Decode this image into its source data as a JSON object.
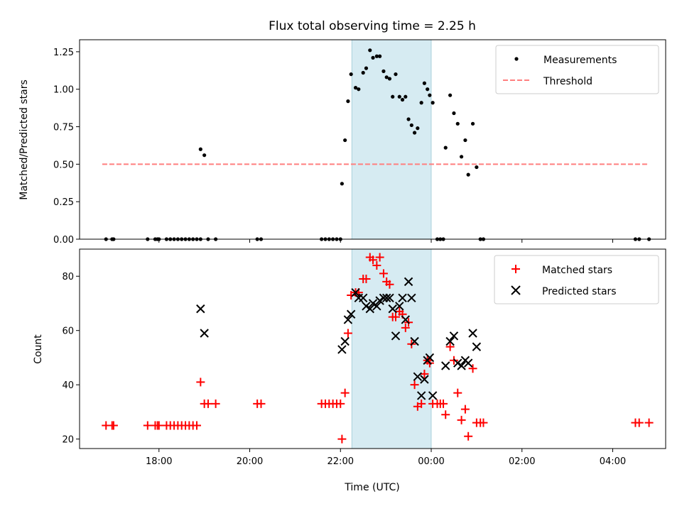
{
  "chart_data": [
    {
      "type": "scatter",
      "title": "Flux total observing time = 2.25 h",
      "xlabel": "",
      "ylabel": "Matched/Predicted stars",
      "xlim": [
        "16:15",
        "05:10"
      ],
      "ylim": [
        0,
        1.33
      ],
      "yticks": [
        0.0,
        0.25,
        0.5,
        0.75,
        1.0,
        1.25
      ],
      "ytick_labels": [
        "0.00",
        "0.25",
        "0.50",
        "0.75",
        "1.00",
        "1.25"
      ],
      "highlight_span": [
        "22:15",
        "00:00"
      ],
      "legend": {
        "position": "top-right",
        "entries": [
          "Measurements",
          "Threshold"
        ]
      },
      "series": [
        {
          "name": "Measurements",
          "marker": "dot",
          "color": "#000000",
          "points": [
            [
              "16:50",
              0
            ],
            [
              "16:58",
              0
            ],
            [
              "17:00",
              0
            ],
            [
              "17:45",
              0
            ],
            [
              "17:55",
              0
            ],
            [
              "17:58",
              0
            ],
            [
              "18:00",
              0
            ],
            [
              "18:10",
              0
            ],
            [
              "18:15",
              0
            ],
            [
              "18:20",
              0
            ],
            [
              "18:25",
              0
            ],
            [
              "18:30",
              0
            ],
            [
              "18:35",
              0
            ],
            [
              "18:40",
              0
            ],
            [
              "18:45",
              0
            ],
            [
              "18:50",
              0
            ],
            [
              "18:55",
              0
            ],
            [
              "19:05",
              0
            ],
            [
              "19:15",
              0
            ],
            [
              "20:10",
              0
            ],
            [
              "20:15",
              0
            ],
            [
              "21:35",
              0
            ],
            [
              "21:40",
              0
            ],
            [
              "21:45",
              0
            ],
            [
              "21:50",
              0
            ],
            [
              "21:55",
              0
            ],
            [
              "22:00",
              0
            ],
            [
              "18:55",
              0.6
            ],
            [
              "19:00",
              0.56
            ],
            [
              "22:02",
              0.37
            ],
            [
              "22:06",
              0.66
            ],
            [
              "22:10",
              0.92
            ],
            [
              "22:14",
              1.1
            ],
            [
              "22:20",
              1.01
            ],
            [
              "22:24",
              1.0
            ],
            [
              "22:30",
              1.11
            ],
            [
              "22:34",
              1.14
            ],
            [
              "22:39",
              1.26
            ],
            [
              "22:43",
              1.21
            ],
            [
              "22:48",
              1.22
            ],
            [
              "22:52",
              1.22
            ],
            [
              "22:57",
              1.12
            ],
            [
              "23:01",
              1.08
            ],
            [
              "23:05",
              1.07
            ],
            [
              "23:09",
              0.95
            ],
            [
              "23:13",
              1.1
            ],
            [
              "23:18",
              0.95
            ],
            [
              "23:22",
              0.93
            ],
            [
              "23:26",
              0.95
            ],
            [
              "23:30",
              0.8
            ],
            [
              "23:34",
              0.76
            ],
            [
              "23:38",
              0.71
            ],
            [
              "23:42",
              0.74
            ],
            [
              "23:47",
              0.91
            ],
            [
              "23:51",
              1.04
            ],
            [
              "23:55",
              1.0
            ],
            [
              "23:58",
              0.96
            ],
            [
              "00:02",
              0.91
            ],
            [
              "00:08",
              0
            ],
            [
              "00:12",
              0
            ],
            [
              "00:16",
              0
            ],
            [
              "00:19",
              0.61
            ],
            [
              "00:25",
              0.96
            ],
            [
              "00:30",
              0.84
            ],
            [
              "00:35",
              0.77
            ],
            [
              "00:40",
              0.55
            ],
            [
              "00:45",
              0.66
            ],
            [
              "00:49",
              0.43
            ],
            [
              "00:55",
              0.77
            ],
            [
              "01:00",
              0.48
            ],
            [
              "01:05",
              0
            ],
            [
              "01:09",
              0
            ],
            [
              "04:30",
              0
            ],
            [
              "04:35",
              0
            ],
            [
              "04:48",
              0
            ]
          ]
        },
        {
          "name": "Threshold",
          "style": "dashed",
          "color": "#ff7f7f",
          "points": [
            [
              "16:45",
              0.5
            ],
            [
              "04:48",
              0.5
            ]
          ]
        }
      ]
    },
    {
      "type": "scatter",
      "title": "",
      "xlabel": "Time (UTC)",
      "ylabel": "Count",
      "xlim": [
        "16:15",
        "05:10"
      ],
      "ylim": [
        16.5,
        90
      ],
      "xticks": [
        "18:00",
        "20:00",
        "22:00",
        "00:00",
        "02:00",
        "04:00"
      ],
      "xtick_labels": [
        "18:00",
        "20:00",
        "22:00",
        "00:00",
        "02:00",
        "04:00"
      ],
      "yticks": [
        20,
        40,
        60,
        80
      ],
      "ytick_labels": [
        "20",
        "40",
        "60",
        "80"
      ],
      "highlight_span": [
        "22:15",
        "00:00"
      ],
      "legend": {
        "position": "top-right",
        "entries": [
          "Matched stars",
          "Predicted stars"
        ]
      },
      "series": [
        {
          "name": "Matched stars",
          "marker": "plus",
          "color": "#ff0000",
          "points": [
            [
              "16:50",
              25
            ],
            [
              "16:58",
              25
            ],
            [
              "17:00",
              25
            ],
            [
              "17:45",
              25
            ],
            [
              "17:55",
              25
            ],
            [
              "17:58",
              25
            ],
            [
              "18:00",
              25
            ],
            [
              "18:10",
              25
            ],
            [
              "18:15",
              25
            ],
            [
              "18:20",
              25
            ],
            [
              "18:25",
              25
            ],
            [
              "18:30",
              25
            ],
            [
              "18:35",
              25
            ],
            [
              "18:40",
              25
            ],
            [
              "18:45",
              25
            ],
            [
              "18:50",
              25
            ],
            [
              "18:55",
              41
            ],
            [
              "19:00",
              33
            ],
            [
              "19:05",
              33
            ],
            [
              "19:15",
              33
            ],
            [
              "20:10",
              33
            ],
            [
              "20:15",
              33
            ],
            [
              "21:35",
              33
            ],
            [
              "21:40",
              33
            ],
            [
              "21:45",
              33
            ],
            [
              "21:50",
              33
            ],
            [
              "21:55",
              33
            ],
            [
              "22:00",
              33
            ],
            [
              "22:02",
              20
            ],
            [
              "22:06",
              37
            ],
            [
              "22:10",
              59
            ],
            [
              "22:14",
              73
            ],
            [
              "22:20",
              74
            ],
            [
              "22:24",
              74
            ],
            [
              "22:30",
              79
            ],
            [
              "22:34",
              79
            ],
            [
              "22:39",
              87
            ],
            [
              "22:43",
              86
            ],
            [
              "22:48",
              84
            ],
            [
              "22:52",
              87
            ],
            [
              "22:57",
              81
            ],
            [
              "23:01",
              78
            ],
            [
              "23:05",
              77
            ],
            [
              "23:09",
              65
            ],
            [
              "23:13",
              65
            ],
            [
              "23:18",
              67
            ],
            [
              "23:22",
              66
            ],
            [
              "23:26",
              61
            ],
            [
              "23:30",
              63
            ],
            [
              "23:34",
              55
            ],
            [
              "23:38",
              40
            ],
            [
              "23:42",
              32
            ],
            [
              "23:47",
              33
            ],
            [
              "23:51",
              44
            ],
            [
              "23:55",
              49
            ],
            [
              "23:58",
              48
            ],
            [
              "00:02",
              33
            ],
            [
              "00:08",
              33
            ],
            [
              "00:12",
              33
            ],
            [
              "00:16",
              33
            ],
            [
              "00:19",
              29
            ],
            [
              "00:25",
              54
            ],
            [
              "00:30",
              49
            ],
            [
              "00:35",
              37
            ],
            [
              "00:40",
              27
            ],
            [
              "00:45",
              31
            ],
            [
              "00:49",
              21
            ],
            [
              "00:55",
              46
            ],
            [
              "01:00",
              26
            ],
            [
              "01:05",
              26
            ],
            [
              "01:09",
              26
            ],
            [
              "04:30",
              26
            ],
            [
              "04:35",
              26
            ],
            [
              "04:48",
              26
            ]
          ]
        },
        {
          "name": "Predicted stars",
          "marker": "x",
          "color": "#000000",
          "points": [
            [
              "18:55",
              68
            ],
            [
              "19:00",
              59
            ],
            [
              "22:02",
              53
            ],
            [
              "22:06",
              56
            ],
            [
              "22:10",
              64
            ],
            [
              "22:14",
              66
            ],
            [
              "22:20",
              74
            ],
            [
              "22:24",
              72
            ],
            [
              "22:30",
              72
            ],
            [
              "22:34",
              69
            ],
            [
              "22:39",
              68
            ],
            [
              "22:43",
              70
            ],
            [
              "22:48",
              69
            ],
            [
              "22:52",
              71
            ],
            [
              "22:57",
              72
            ],
            [
              "23:01",
              72
            ],
            [
              "23:05",
              72
            ],
            [
              "23:09",
              68
            ],
            [
              "23:13",
              58
            ],
            [
              "23:18",
              69
            ],
            [
              "23:22",
              72
            ],
            [
              "23:26",
              64
            ],
            [
              "23:30",
              78
            ],
            [
              "23:34",
              72
            ],
            [
              "23:38",
              56
            ],
            [
              "23:42",
              43
            ],
            [
              "23:47",
              36
            ],
            [
              "23:51",
              42
            ],
            [
              "23:55",
              49
            ],
            [
              "23:58",
              50
            ],
            [
              "00:02",
              36
            ],
            [
              "00:19",
              47
            ],
            [
              "00:25",
              56
            ],
            [
              "00:30",
              58
            ],
            [
              "00:35",
              48
            ],
            [
              "00:40",
              47
            ],
            [
              "00:45",
              49
            ],
            [
              "00:49",
              48
            ],
            [
              "00:55",
              59
            ],
            [
              "01:00",
              54
            ]
          ]
        }
      ]
    }
  ]
}
